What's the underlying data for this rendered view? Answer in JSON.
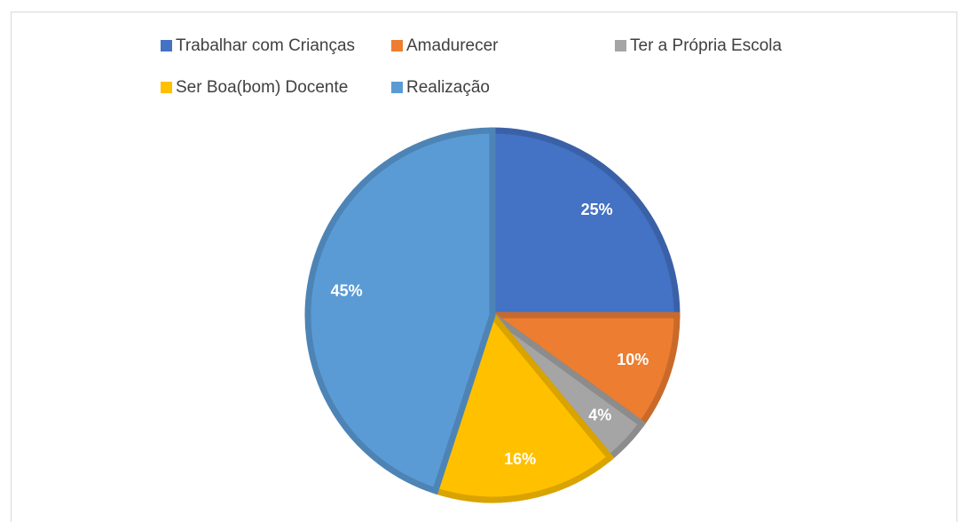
{
  "chart_data": {
    "type": "pie",
    "categories": [
      "Trabalhar com Crianças",
      "Amadurecer",
      "Ter a Própria Escola",
      "Ser Boa(bom) Docente",
      "Realização"
    ],
    "values": [
      25,
      10,
      4,
      16,
      45
    ],
    "value_labels": [
      "25%",
      "10%",
      "4%",
      "16%",
      "45%"
    ],
    "colors": [
      "#4472c4",
      "#ed7d31",
      "#a5a5a5",
      "#ffc000",
      "#5b9bd5"
    ],
    "legend": "top"
  }
}
